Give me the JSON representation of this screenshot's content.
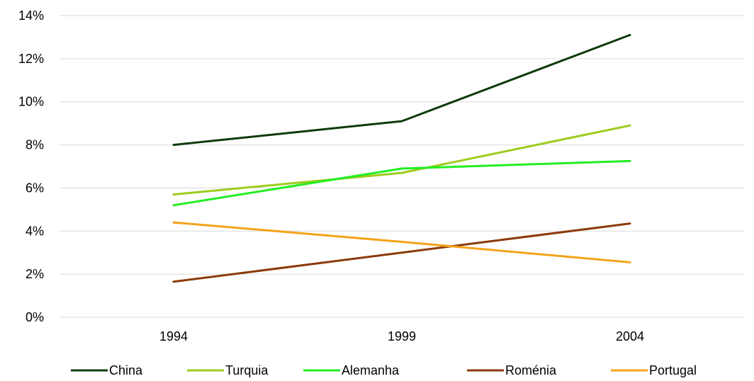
{
  "chart_data": {
    "type": "line",
    "categories": [
      "1994",
      "1999",
      "2004"
    ],
    "y_ticks": [
      "0%",
      "2%",
      "4%",
      "6%",
      "8%",
      "10%",
      "12%",
      "14%"
    ],
    "ylim": [
      0,
      14
    ],
    "grid": true,
    "legend_position": "bottom",
    "series": [
      {
        "name": "China",
        "color": "#0d3b0d",
        "values": [
          8.0,
          9.1,
          13.1
        ]
      },
      {
        "name": "Turquia",
        "color": "#9ccc1c",
        "values": [
          5.7,
          6.7,
          8.9
        ]
      },
      {
        "name": "Alemanha",
        "color": "#22ee22",
        "values": [
          5.2,
          6.9,
          7.25
        ]
      },
      {
        "name": "Roménia",
        "color": "#8b3a0a",
        "values": [
          1.65,
          3.0,
          4.35
        ]
      },
      {
        "name": "Portugal",
        "color": "#f5a31a",
        "values": [
          4.4,
          3.5,
          2.55
        ]
      }
    ]
  }
}
